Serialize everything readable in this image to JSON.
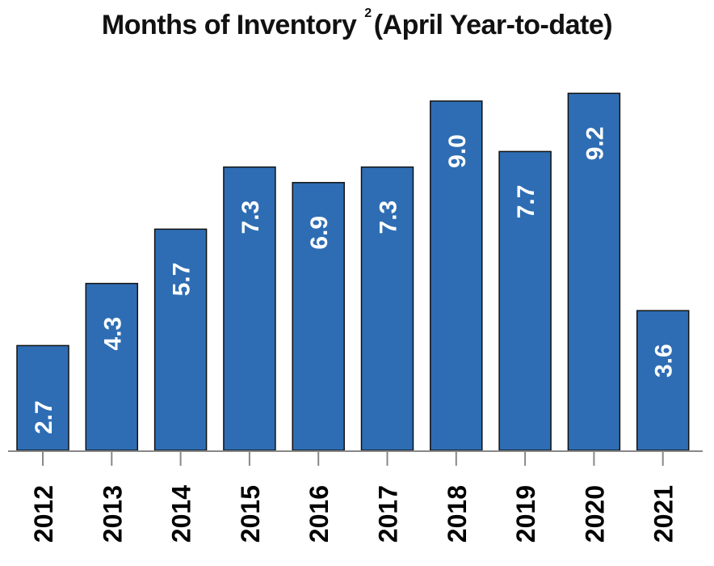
{
  "chart_data": {
    "type": "bar",
    "title": "Months of Inventory",
    "title_superscript": "2",
    "subtitle": "(April Year-to-date)",
    "categories": [
      "2012",
      "2013",
      "2014",
      "2015",
      "2016",
      "2017",
      "2018",
      "2019",
      "2020",
      "2021"
    ],
    "values": [
      2.7,
      4.3,
      5.7,
      7.3,
      6.9,
      7.3,
      9.0,
      7.7,
      9.2,
      3.6
    ],
    "value_labels": [
      "2.7",
      "4.3",
      "5.7",
      "7.3",
      "6.9",
      "7.3",
      "9.0",
      "7.7",
      "9.2",
      "3.6"
    ],
    "xlabel": "",
    "ylabel": "",
    "ylim": [
      0,
      9.5
    ],
    "grid": false,
    "legend": "none",
    "bar_color": "#2e6db3",
    "bar_edge_color": "#111111"
  }
}
